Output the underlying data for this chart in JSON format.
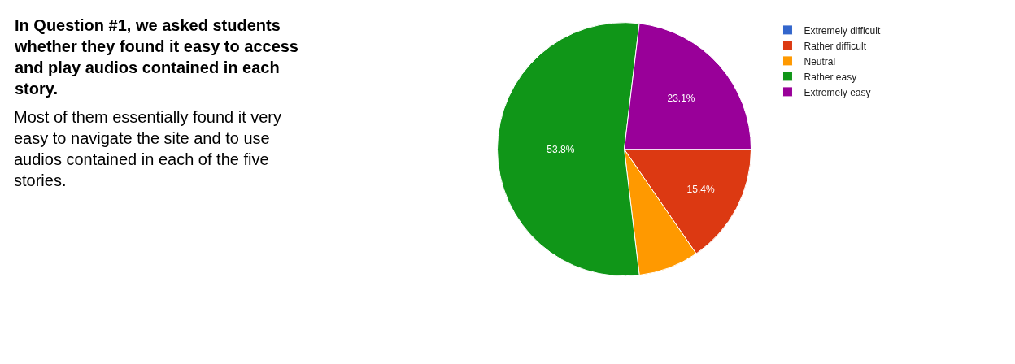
{
  "chart_data": [
    {
      "type": "other",
      "title": "In Question #1, we asked students whether they found it easy to access and play audios contained in each story.",
      "annotations": [
        "Most of them essentially found it very easy to navigate the site and to use audios contained in each of the five stories."
      ]
    },
    {
      "type": "pie",
      "categories": [
        "Extremely difficult",
        "Rather difficult",
        "Neutral",
        "Rather easy",
        "Extremely easy"
      ],
      "values": [
        0,
        15.4,
        7.7,
        53.8,
        23.1
      ],
      "colors": [
        "#3366cc",
        "#dc3912",
        "#ff9900",
        "#109618",
        "#990099"
      ],
      "value_labels": [
        null,
        "15.4%",
        null,
        "53.8%",
        "23.1%"
      ],
      "legend": "right"
    }
  ]
}
